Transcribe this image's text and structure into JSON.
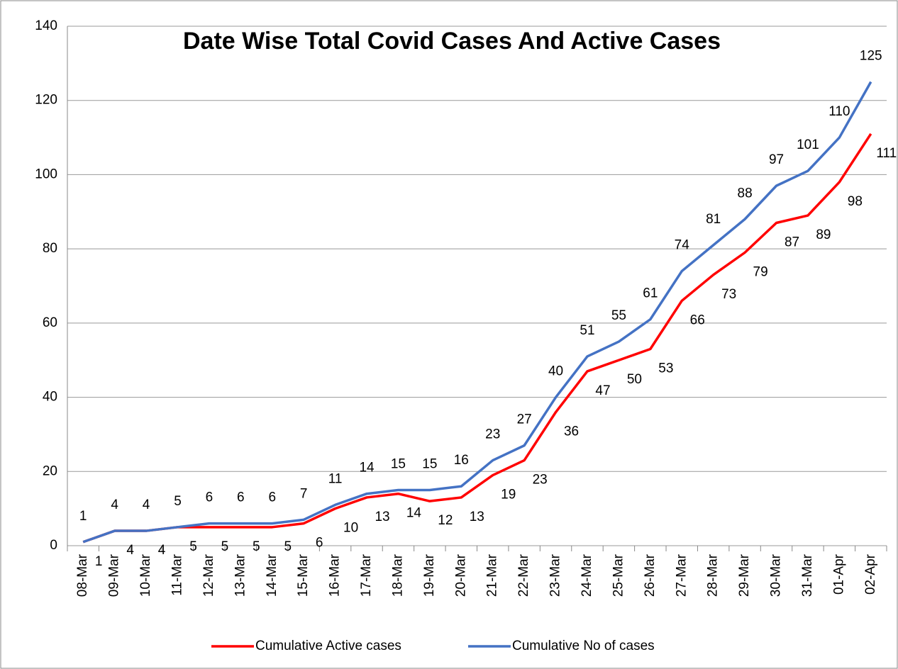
{
  "chart_data": {
    "type": "line",
    "title": "Date Wise Total Covid Cases And Active Cases",
    "categories": [
      "08-Mar",
      "09-Mar",
      "10-Mar",
      "11-Mar",
      "12-Mar",
      "13-Mar",
      "14-Mar",
      "15-Mar",
      "16-Mar",
      "17-Mar",
      "18-Mar",
      "19-Mar",
      "20-Mar",
      "21-Mar",
      "22-Mar",
      "23-Mar",
      "24-Mar",
      "25-Mar",
      "26-Mar",
      "27-Mar",
      "28-Mar",
      "29-Mar",
      "30-Mar",
      "31-Mar",
      "01-Apr",
      "02-Apr"
    ],
    "series": [
      {
        "name": "Cumulative Active cases",
        "color": "#ff0000",
        "values": [
          1,
          4,
          4,
          5,
          5,
          5,
          5,
          6,
          10,
          13,
          14,
          12,
          13,
          19,
          23,
          36,
          47,
          50,
          53,
          66,
          73,
          79,
          87,
          89,
          98,
          111
        ]
      },
      {
        "name": "Cumulative No of cases",
        "color": "#4472c4",
        "values": [
          1,
          4,
          4,
          5,
          6,
          6,
          6,
          7,
          11,
          14,
          15,
          15,
          16,
          23,
          27,
          40,
          51,
          55,
          61,
          74,
          81,
          88,
          97,
          101,
          110,
          125
        ]
      }
    ],
    "ylim": [
      0,
      140
    ],
    "yticks": [
      0,
      20,
      40,
      60,
      80,
      100,
      120,
      140
    ],
    "grid": true,
    "legend": "bottom"
  }
}
